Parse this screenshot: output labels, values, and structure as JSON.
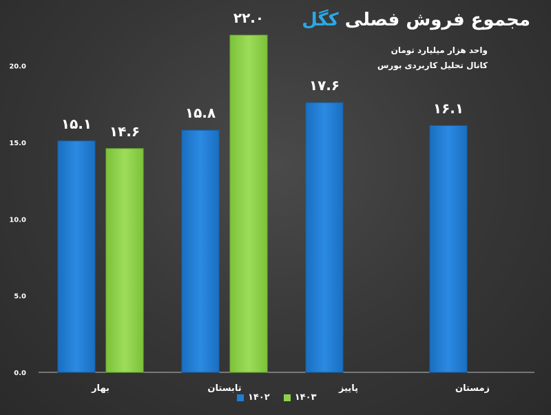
{
  "title": {
    "main": "مجموع فروش فصلی",
    "brand": "کگل"
  },
  "subtitles": [
    "واحد هزار میلیارد تومان",
    "کانال تحلیل کاربردی بورس"
  ],
  "colors": {
    "series_1402": "#1f7fd6",
    "series_1403": "#8ed24a",
    "axis": "#bdbdbd",
    "grid": "#3f3f3f",
    "text": "#ffffff"
  },
  "chart_data": {
    "type": "bar",
    "categories": [
      "بهار",
      "تابستان",
      "پاییز",
      "زمستان"
    ],
    "series": [
      {
        "name": "۱۴۰۲",
        "values": [
          15.1,
          15.8,
          17.6,
          16.1
        ]
      },
      {
        "name": "۱۴۰۳",
        "values": [
          14.6,
          22.0,
          null,
          null
        ]
      }
    ],
    "data_labels": [
      [
        "۱۵.۱",
        "۱۵.۸",
        "۱۷.۶",
        "۱۶.۱"
      ],
      [
        "۱۴.۶",
        "۲۲.۰",
        "",
        ""
      ]
    ],
    "y_ticks": [
      0,
      5,
      10,
      15,
      20
    ],
    "y_tick_labels": [
      "0.0",
      "5.0",
      "10.0",
      "15.0",
      "20.0"
    ],
    "ylim": [
      0,
      22.5
    ],
    "legend": "bottom",
    "grid": false
  }
}
